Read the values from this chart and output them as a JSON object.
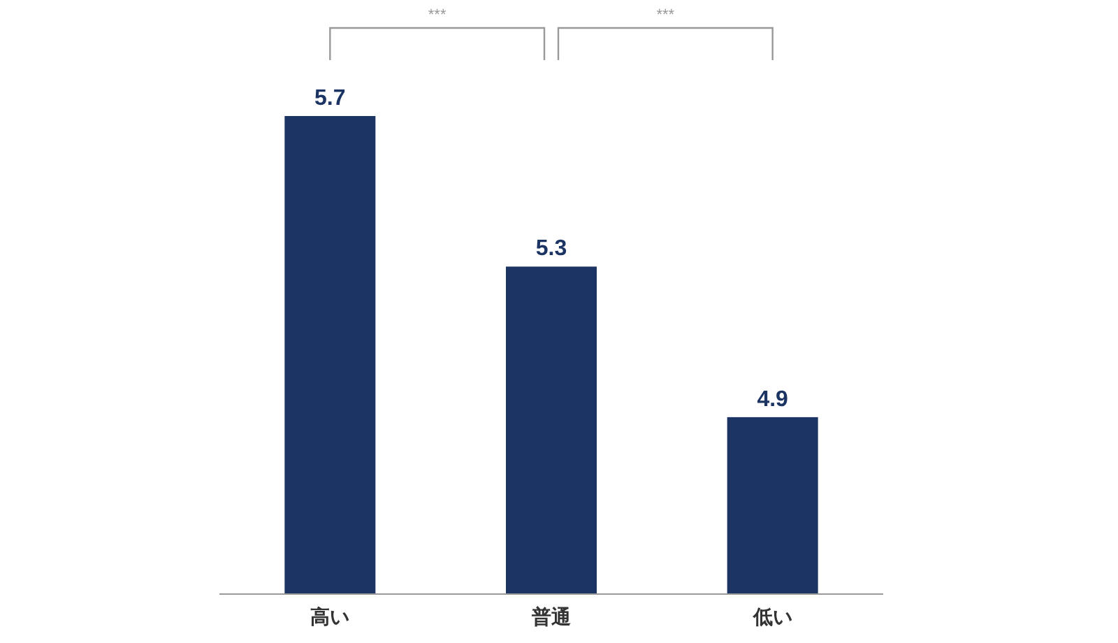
{
  "chart_data": {
    "type": "bar",
    "categories": [
      "高い",
      "普通",
      "低い"
    ],
    "values": [
      5.7,
      5.3,
      4.9
    ],
    "color": "#1b3464",
    "data_labels": true,
    "ylim": [
      4.43,
      5.7
    ],
    "annotations": [
      "***",
      "***"
    ]
  }
}
